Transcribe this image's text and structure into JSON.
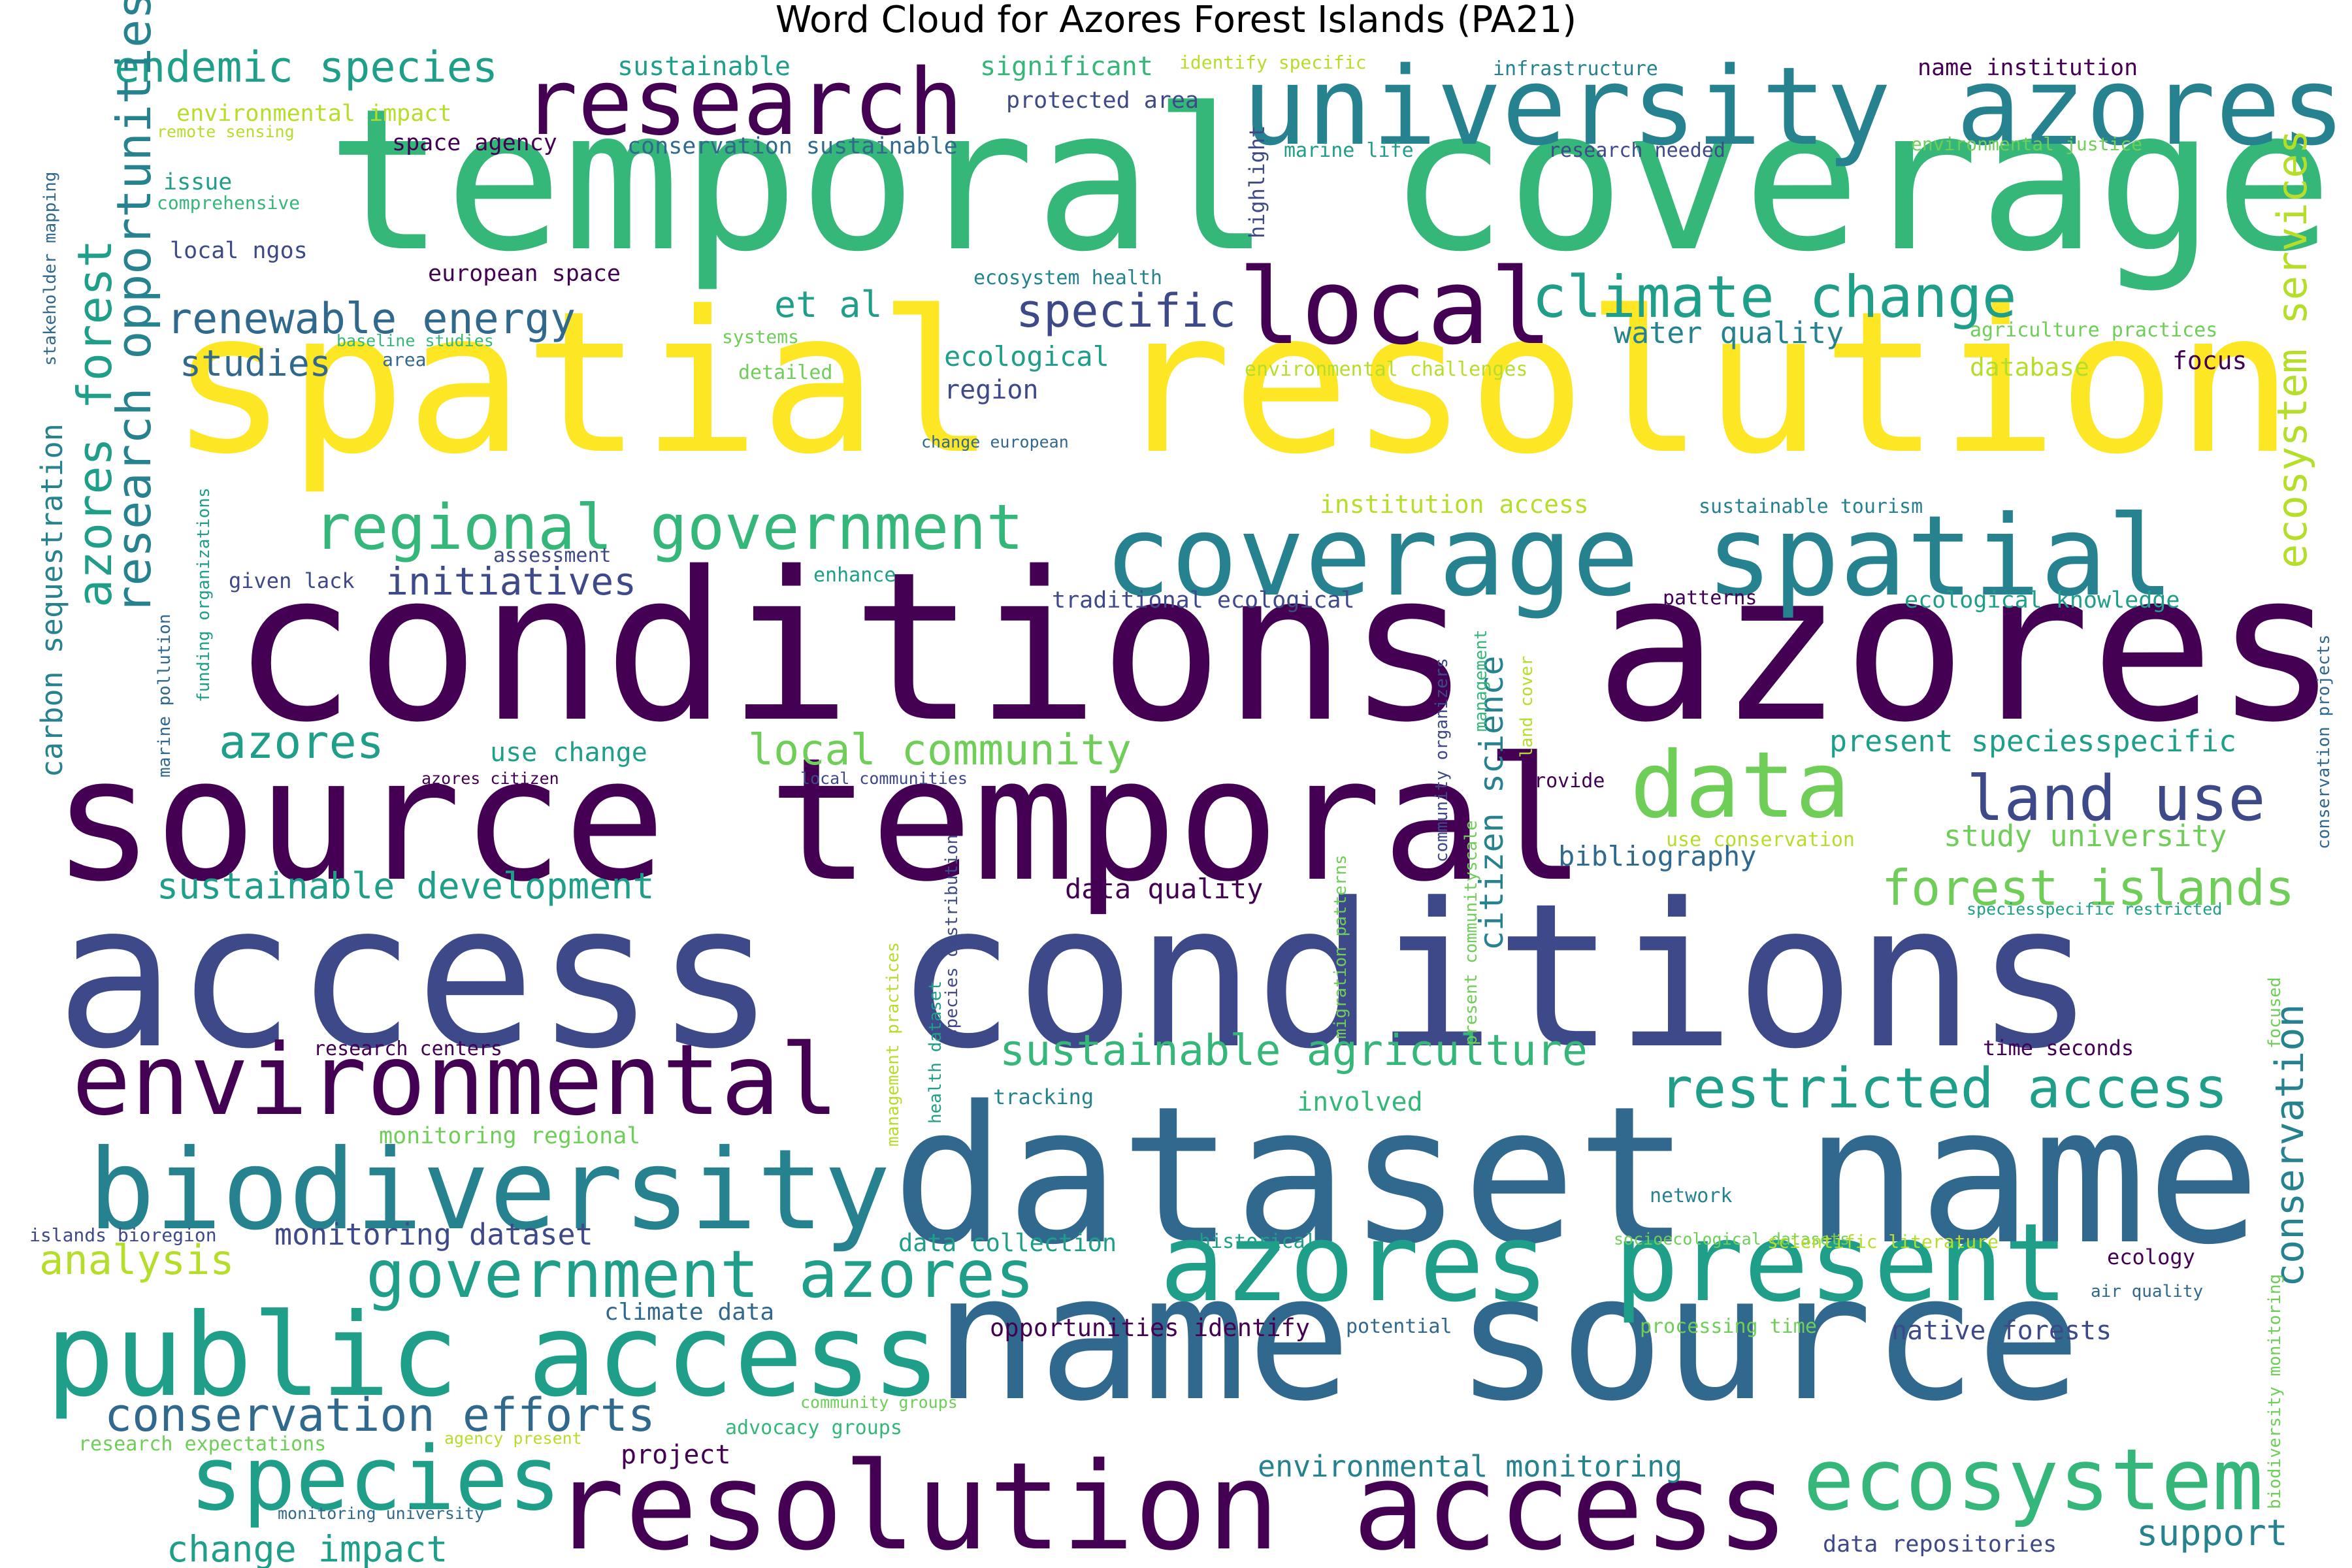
{
  "title": "Word Cloud for Azores Forest Islands (PA21)",
  "palette": [
    "#440154",
    "#3e4989",
    "#31688e",
    "#26828e",
    "#1f9e89",
    "#35b779",
    "#6ece58",
    "#b5de2b",
    "#fde725"
  ],
  "words": [
    "temporal coverage",
    "spatial resolution",
    "conditions azores",
    "source temporal",
    "access conditions",
    "dataset name",
    "name source",
    "resolution access",
    "public access",
    "biodiversity",
    "environmental",
    "coverage spatial",
    "university azores",
    "research",
    "local",
    "azores present",
    "regional government",
    "government azores",
    "species",
    "ecosystem",
    "data",
    "land use",
    "restricted access",
    "climate change",
    "conservation efforts",
    "endemic species",
    "renewable energy",
    "azores forest",
    "research opportunities",
    "forest islands",
    "sustainable agriculture",
    "sustainable development",
    "local community",
    "azores",
    "initiatives",
    "studies",
    "specific",
    "et al",
    "ecosystem services",
    "conservation",
    "change impact",
    "analysis",
    "monitoring dataset",
    "environmental monitoring",
    "support",
    "carbon sequestration",
    "citizen science",
    "study university",
    "present speciesspecific",
    "water quality",
    "bibliography",
    "data quality",
    "involved",
    "native forests",
    "project",
    "ecological",
    "region",
    "database",
    "focus",
    "use change",
    "climate data",
    "data collection",
    "opportunities identify",
    "sustainable",
    "significant",
    "environmental impact",
    "protected area",
    "conservation sustainable",
    "space agency",
    "highlight",
    "name institution",
    "infrastructure",
    "identify specific",
    "marine life",
    "research needed",
    "environmental justice",
    "remote sensing",
    "issue",
    "comprehensive",
    "local ngos",
    "european space",
    "ecosystem health",
    "systems",
    "baseline studies",
    "area",
    "detailed",
    "environmental challenges",
    "agriculture practices",
    "change european",
    "institution access",
    "sustainable tourism",
    "assessment",
    "given lack",
    "enhance",
    "traditional ecological",
    "patterns",
    "ecological knowledge",
    "marine pollution",
    "funding organizations",
    "stakeholder mapping",
    "conservation projects",
    "azores citizen",
    "local communities",
    "provide",
    "community organizers",
    "management",
    "land cover",
    "use conservation",
    "speciesspecific restricted",
    "present communityscale",
    "migration patterns",
    "species distribution",
    "management practices",
    "health dataset",
    "research centers",
    "tracking",
    "monitoring regional",
    "time seconds",
    "focused",
    "islands bioregion",
    "network",
    "historical",
    "socioecological datasets",
    "scientific literature",
    "ecology",
    "biodiversity monitoring",
    "air quality",
    "potential",
    "processing time",
    "community groups",
    "advocacy groups",
    "research expectations",
    "agency present",
    "monitoring university",
    "data repositories"
  ]
}
